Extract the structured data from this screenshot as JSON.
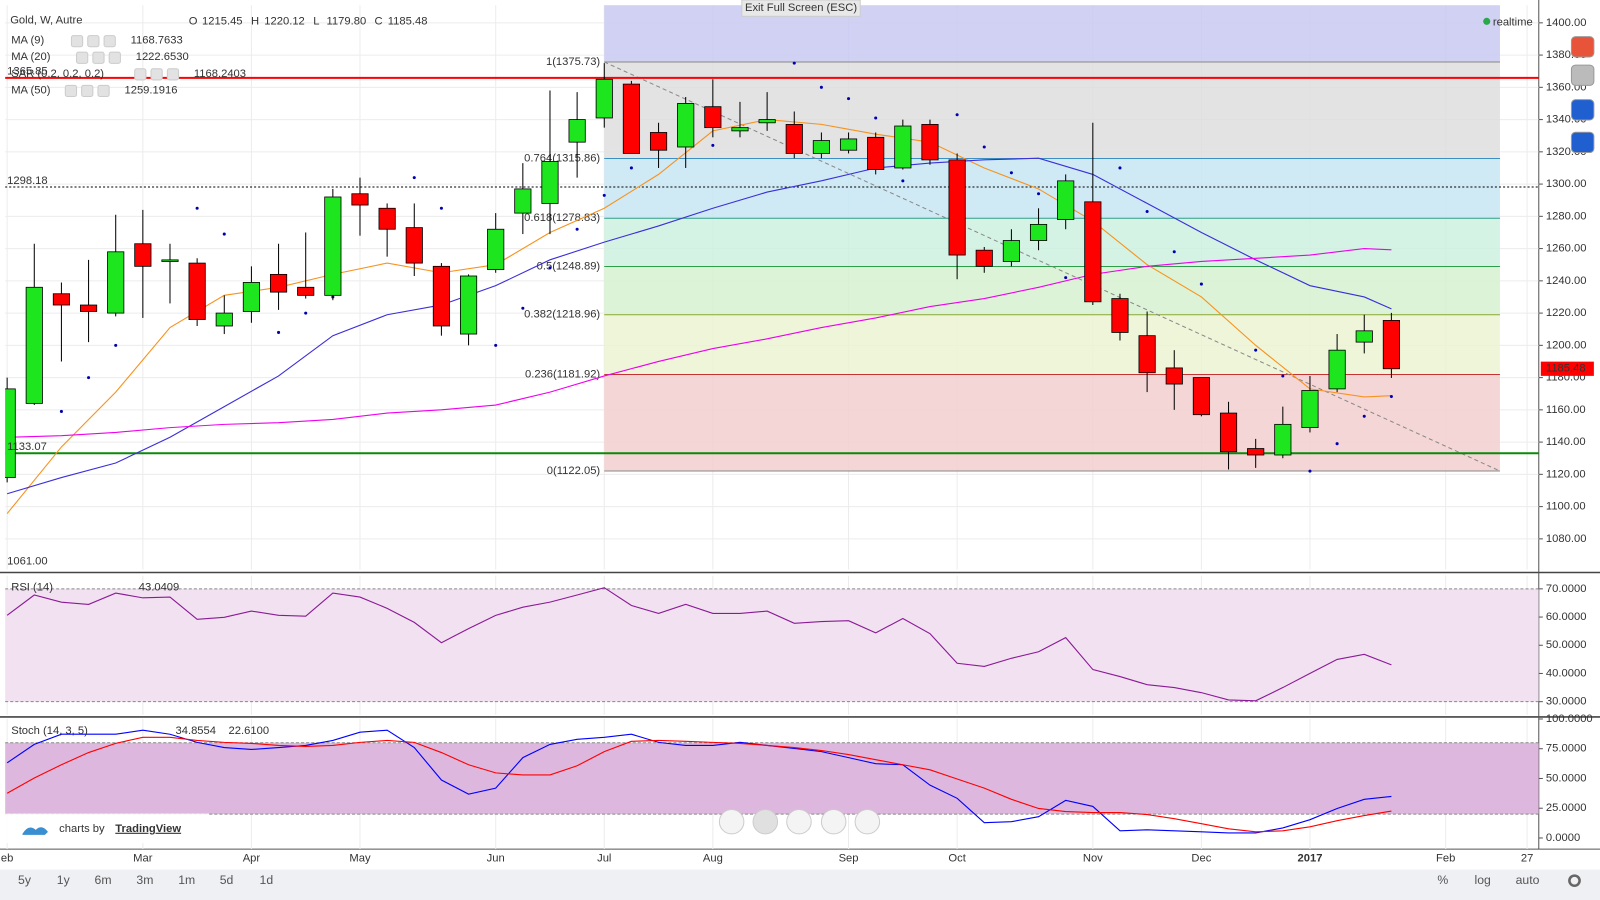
{
  "header": {
    "symbol": "Gold, W, Autre",
    "ohlc_keys": [
      "O",
      "H",
      "L",
      "C"
    ],
    "ohlc_labels": [
      "1215.45",
      "1220.12",
      "1179.80",
      "1185.48"
    ]
  },
  "ui": {
    "exit_full_screen": "Exit Full Screen (ESC)",
    "realtime": "realtime",
    "branding": "charts by",
    "brand": "TradingView",
    "ranges": [
      "5y",
      "1y",
      "6m",
      "3m",
      "1m",
      "5d",
      "1d"
    ],
    "scale_options": [
      "%",
      "log",
      "auto"
    ]
  },
  "chart_data": [
    {
      "type": "candlestick",
      "x": [
        0,
        1,
        2,
        3,
        4,
        5,
        6,
        7,
        8,
        9,
        10,
        11,
        12,
        13,
        14,
        15,
        16,
        17,
        18,
        19,
        20,
        21,
        22,
        23,
        24,
        25,
        26,
        27,
        28,
        29,
        30,
        31,
        32,
        33,
        34,
        35,
        36,
        37,
        38,
        39,
        40,
        41,
        42,
        43,
        44,
        45,
        46,
        47,
        48,
        49,
        50,
        51
      ],
      "open": [
        1118,
        1164,
        1232,
        1225,
        1220,
        1263,
        1252,
        1251,
        1212,
        1221,
        1244,
        1236,
        1231,
        1294,
        1285,
        1273,
        1249,
        1207,
        1247,
        1282,
        1288,
        1326,
        1341,
        1362,
        1332,
        1323,
        1348,
        1333,
        1338,
        1337,
        1319,
        1321,
        1329,
        1310,
        1337,
        1315,
        1259,
        1252,
        1265,
        1278,
        1289,
        1229,
        1206,
        1186,
        1180,
        1158,
        1136,
        1132,
        1149,
        1173,
        1202,
        1215.45
      ],
      "high": [
        1180,
        1263,
        1239,
        1253,
        1281,
        1284,
        1263,
        1254,
        1231,
        1249,
        1263,
        1270,
        1297,
        1304,
        1288,
        1288,
        1251,
        1244,
        1282,
        1313,
        1358,
        1357,
        1375,
        1364,
        1338,
        1354,
        1365,
        1351,
        1357,
        1345,
        1332,
        1332,
        1332,
        1340,
        1340,
        1319,
        1261,
        1272,
        1285,
        1306,
        1338,
        1232,
        1221,
        1197,
        1180,
        1165,
        1142,
        1162,
        1181,
        1207,
        1219,
        1220.12
      ],
      "low": [
        1115,
        1163,
        1190,
        1202,
        1218,
        1217,
        1226,
        1212,
        1207,
        1214,
        1222,
        1229,
        1228,
        1268,
        1255,
        1243,
        1206,
        1200,
        1245,
        1269,
        1269,
        1304,
        1335,
        1319,
        1310,
        1310,
        1329,
        1329,
        1333,
        1316,
        1316,
        1319,
        1306,
        1309,
        1312,
        1241,
        1245,
        1249,
        1259,
        1272,
        1225,
        1203,
        1171,
        1160,
        1156,
        1123,
        1124,
        1130,
        1146,
        1171,
        1195,
        1179.8
      ],
      "close": [
        1173,
        1236,
        1225,
        1221,
        1258,
        1249,
        1253,
        1216,
        1220,
        1239,
        1233,
        1231,
        1292,
        1287,
        1272,
        1251,
        1212,
        1243,
        1272,
        1297,
        1314,
        1340,
        1365,
        1319,
        1321,
        1350,
        1335,
        1335,
        1340,
        1319,
        1327,
        1328,
        1309,
        1336,
        1315,
        1256,
        1249,
        1265,
        1275,
        1302,
        1227,
        1208,
        1183,
        1176,
        1157,
        1134,
        1132,
        1151,
        1172,
        1197,
        1209,
        1185.48
      ],
      "up_color": "#1ee61e",
      "down_color": "#ff0000",
      "xlim": [
        -0.075,
        56.43
      ],
      "xticks": [
        {
          "value": 0,
          "label": "eb"
        },
        {
          "value": 5,
          "label": "Mar"
        },
        {
          "value": 9,
          "label": "Apr"
        },
        {
          "value": 13,
          "label": "May"
        },
        {
          "value": 18,
          "label": "Jun"
        },
        {
          "value": 22,
          "label": "Jul"
        },
        {
          "value": 26,
          "label": "Aug"
        },
        {
          "value": 31,
          "label": "Sep"
        },
        {
          "value": 35,
          "label": "Oct"
        },
        {
          "value": 40,
          "label": "Nov"
        },
        {
          "value": 44,
          "label": "Dec"
        },
        {
          "value": 48,
          "label": "2017"
        },
        {
          "value": 53,
          "label": "Feb"
        },
        {
          "value": 56,
          "label": "27"
        }
      ],
      "ylim": [
        1061,
        1411
      ],
      "yticks": [
        {
          "value": 1080,
          "label": "1080.00"
        },
        {
          "value": 1100,
          "label": "1100.00"
        },
        {
          "value": 1120,
          "label": "1120.00"
        },
        {
          "value": 1140,
          "label": "1140.00"
        },
        {
          "value": 1160,
          "label": "1160.00"
        },
        {
          "value": 1180,
          "label": "1180.00"
        },
        {
          "value": 1200,
          "label": "1200.00"
        },
        {
          "value": 1220,
          "label": "1220.00"
        },
        {
          "value": 1240,
          "label": "1240.00"
        },
        {
          "value": 1260,
          "label": "1260.00"
        },
        {
          "value": 1280,
          "label": "1280.00"
        },
        {
          "value": 1300,
          "label": "1300.00"
        },
        {
          "value": 1320,
          "label": "1320.00"
        },
        {
          "value": 1340,
          "label": "1340.00"
        },
        {
          "value": 1360,
          "label": "1360.00"
        },
        {
          "value": 1380,
          "label": "1380.00"
        },
        {
          "value": 1400,
          "label": "1400.00"
        }
      ],
      "grid": true,
      "series": [
        {
          "name": "MA (9)",
          "color": "#f7931e",
          "style": "line",
          "last_label": "1168.7633",
          "x": [
            0,
            2,
            4,
            6,
            8,
            10,
            12,
            14,
            16,
            18,
            20,
            22,
            24,
            26,
            28,
            30,
            32,
            34,
            36,
            38,
            40,
            42,
            44,
            46,
            48,
            50,
            51
          ],
          "values": [
            1095.7,
            1137,
            1171,
            1211,
            1231,
            1236,
            1244,
            1251,
            1245,
            1250,
            1270,
            1285,
            1306,
            1333,
            1340,
            1337,
            1331,
            1326,
            1310,
            1297,
            1277,
            1250,
            1230,
            1200,
            1173,
            1168,
            1168.7633
          ]
        },
        {
          "name": "MA (20)",
          "color": "#3b2fd8",
          "style": "line",
          "last_label": "1222.6530",
          "x": [
            0,
            2,
            4,
            6,
            8,
            10,
            12,
            14,
            16,
            18,
            20,
            22,
            24,
            26,
            28,
            30,
            32,
            34,
            36,
            38,
            40,
            42,
            44,
            46,
            48,
            50,
            51
          ],
          "values": [
            1108,
            1118,
            1127,
            1143,
            1162,
            1181,
            1206,
            1219,
            1225,
            1237,
            1253,
            1264,
            1274,
            1285,
            1295,
            1302,
            1310,
            1313,
            1315,
            1316,
            1306,
            1288,
            1270,
            1253,
            1237,
            1230,
            1222.653
          ]
        },
        {
          "name": "SAR (0.2, 0.2, 0.2)",
          "color": "#0000b0",
          "style": "dots",
          "last_label": "1168.2403",
          "x": [
            2,
            3,
            4,
            7,
            8,
            10,
            11,
            12,
            15,
            16,
            18,
            19,
            20,
            21,
            22,
            23,
            26,
            29,
            30,
            31,
            32,
            33,
            35,
            36,
            37,
            38,
            39,
            41,
            42,
            43,
            44,
            46,
            47,
            48,
            49,
            50,
            51
          ],
          "values": [
            1159,
            1180,
            1200,
            1285,
            1269,
            1208,
            1220,
            1230,
            1304,
            1285,
            1200,
            1223,
            1248,
            1272,
            1293,
            1310,
            1324,
            1375,
            1360,
            1353,
            1341,
            1302,
            1343,
            1323,
            1307,
            1294,
            1242,
            1310,
            1283,
            1258,
            1238,
            1197,
            1181,
            1122,
            1139,
            1156,
            1168.2403
          ]
        },
        {
          "name": "MA (50)",
          "color": "#ee00ee",
          "style": "line",
          "last_label": "1259.1916",
          "x": [
            0,
            2,
            4,
            6,
            8,
            10,
            12,
            14,
            16,
            18,
            20,
            22,
            24,
            26,
            28,
            30,
            32,
            34,
            36,
            38,
            40,
            42,
            44,
            46,
            48,
            50,
            51
          ],
          "values": [
            1143,
            1144,
            1146,
            1149,
            1151,
            1152,
            1154,
            1158,
            1160,
            1163,
            1171,
            1181,
            1190,
            1198,
            1204,
            1211,
            1217,
            1224,
            1229,
            1236,
            1244,
            1249,
            1252,
            1254,
            1256,
            1260,
            1259.1916
          ]
        }
      ],
      "fib": {
        "x": [
          22,
          55
        ],
        "levels": [
          {
            "value": 1375.73,
            "label": "1(1375.73)",
            "line_color": "#888888",
            "label_color": "#666666",
            "fill": "#c9c9f2"
          },
          {
            "value": 1315.86,
            "label": "0.764(1315.86)",
            "line_color": "#3b8fc2",
            "label_color": "#3b8fc2",
            "fill": "#dedede"
          },
          {
            "value": 1278.83,
            "label": "0.618(1278.83)",
            "line_color": "#2f9e8a",
            "label_color": "#2f9e8a",
            "fill": "#c7e6f3"
          },
          {
            "value": 1248.89,
            "label": "0.5(1248.89)",
            "line_color": "#2e9e4a",
            "label_color": "#2e9e4a",
            "fill": "#cdf1df"
          },
          {
            "value": 1218.96,
            "label": "0.382(1218.96)",
            "line_color": "#8aa832",
            "label_color": "#8aa832",
            "fill": "#d7f1d0"
          },
          {
            "value": 1181.92,
            "label": "0.236(1181.92)",
            "line_color": "#c43232",
            "label_color": "#c43232",
            "fill": "#ecf3d2"
          },
          {
            "value": 1122.05,
            "label": "0(1122.05)",
            "line_color": "#888888",
            "label_color": "#666666",
            "fill": "#f3cfcf"
          }
        ]
      },
      "hlines": [
        {
          "value": 1365.85,
          "label": "1365.85",
          "color": "#ff0000",
          "width": 2,
          "dashed": false
        },
        {
          "value": 1298.18,
          "label": "1298.18",
          "color": "#000000",
          "width": 1,
          "dashed": true
        },
        {
          "value": 1133.07,
          "label": "1133.07",
          "color": "#0a8a0a",
          "width": 2,
          "dashed": false
        }
      ],
      "trend": {
        "x": [
          22,
          55
        ],
        "values": [
          1375.73,
          1122.05
        ],
        "color": "#888888"
      },
      "low_label": {
        "value": 1061,
        "label": "1061.00"
      },
      "last_price": {
        "value": 1185.48,
        "label": "1185.48",
        "color": "#ff0000"
      }
    },
    {
      "type": "line",
      "title": "RSI (14)",
      "x": [
        0,
        1,
        2,
        3,
        4,
        5,
        6,
        7,
        8,
        9,
        10,
        11,
        12,
        13,
        14,
        15,
        16,
        17,
        18,
        19,
        20,
        21,
        22,
        23,
        24,
        25,
        26,
        27,
        28,
        29,
        30,
        31,
        32,
        33,
        34,
        35,
        36,
        37,
        38,
        39,
        40,
        41,
        42,
        43,
        44,
        45,
        46,
        47,
        48,
        49,
        50,
        51
      ],
      "xlim": [
        -0.075,
        56.43
      ],
      "ylim": [
        25.3,
        74.7
      ],
      "yticks": [
        {
          "value": 30,
          "label": "30.0000"
        },
        {
          "value": 40,
          "label": "40.0000"
        },
        {
          "value": 50,
          "label": "50.0000"
        },
        {
          "value": 60,
          "label": "60.0000"
        },
        {
          "value": 70,
          "label": "70.0000"
        }
      ],
      "band": {
        "range": [
          30,
          70
        ],
        "color": "#f1e1f1"
      },
      "series": [
        {
          "color": "#8b1a96",
          "last_label": "43.0409",
          "values": [
            60.6,
            67.8,
            65.3,
            64.5,
            68.5,
            66.8,
            67.1,
            59.2,
            59.9,
            62.1,
            60.6,
            60.3,
            68.5,
            67.1,
            63.1,
            58.1,
            50.9,
            55.9,
            60.6,
            63.5,
            65.3,
            67.8,
            70.4,
            64.1,
            61.3,
            64.5,
            61.3,
            61.3,
            62.1,
            57.8,
            58.4,
            58.7,
            54.4,
            59.5,
            54.1,
            43.6,
            42.5,
            45.4,
            47.7,
            52.7,
            41.4,
            38.9,
            36.0,
            35.0,
            33.2,
            30.6,
            30.3,
            35.0,
            40.0,
            45.0,
            46.8,
            43.0409
          ]
        }
      ]
    },
    {
      "type": "line",
      "title": "Stoch (14, 3, 5)",
      "x": [
        0,
        1,
        2,
        3,
        4,
        5,
        6,
        7,
        8,
        9,
        10,
        11,
        12,
        13,
        14,
        15,
        16,
        17,
        18,
        19,
        20,
        21,
        22,
        23,
        24,
        25,
        26,
        27,
        28,
        29,
        30,
        31,
        32,
        33,
        34,
        35,
        36,
        37,
        38,
        39,
        40,
        41,
        42,
        43,
        44,
        45,
        46,
        47,
        48,
        49,
        50,
        51
      ],
      "xlim": [
        -0.075,
        56.43
      ],
      "ylim": [
        -9.4,
        100
      ],
      "yticks": [
        {
          "value": 0,
          "label": "0.0000"
        },
        {
          "value": 25,
          "label": "25.0000"
        },
        {
          "value": 50,
          "label": "50.0000"
        },
        {
          "value": 75,
          "label": "75.0000"
        },
        {
          "value": 100,
          "label": "100.0000"
        }
      ],
      "band": {
        "range": [
          20,
          80
        ],
        "color": "#ddb7dd"
      },
      "series": [
        {
          "color": "#0000ff",
          "last_label": "34.8554",
          "values": [
            63.2,
            78.6,
            87.2,
            87.2,
            87.2,
            90.6,
            87.2,
            80.3,
            76,
            74.4,
            76,
            77.8,
            82,
            88.9,
            90.6,
            76,
            48.7,
            36.8,
            41.9,
            67.5,
            78.6,
            82.9,
            84.6,
            87.2,
            80.3,
            77.8,
            77.8,
            80.3,
            77.8,
            75.2,
            72.6,
            67.5,
            62.4,
            61.5,
            44.4,
            33.3,
            12.8,
            13.7,
            17.9,
            31.6,
            26.5,
            6,
            6.8,
            6,
            5.1,
            4.3,
            4.3,
            8.5,
            15.4,
            24.8,
            32.5,
            34.8554
          ]
        },
        {
          "color": "#ff0000",
          "last_label": "22.6100",
          "values": [
            37.6,
            50.4,
            61.5,
            71.8,
            79.5,
            84.6,
            84.6,
            82,
            80.3,
            79.5,
            77.8,
            76.9,
            77.8,
            80.3,
            82,
            80.3,
            71.8,
            61.5,
            54.7,
            53,
            53,
            60.7,
            72.6,
            81.2,
            82,
            81.2,
            80.3,
            79.5,
            77.8,
            76,
            73.5,
            70.1,
            65.8,
            61.5,
            57.3,
            49.6,
            41.9,
            32.5,
            24.8,
            22.2,
            21.4,
            21.4,
            19.7,
            16.2,
            12,
            7.7,
            5.1,
            6,
            9.4,
            14.5,
            18.8,
            22.61
          ]
        }
      ]
    }
  ]
}
